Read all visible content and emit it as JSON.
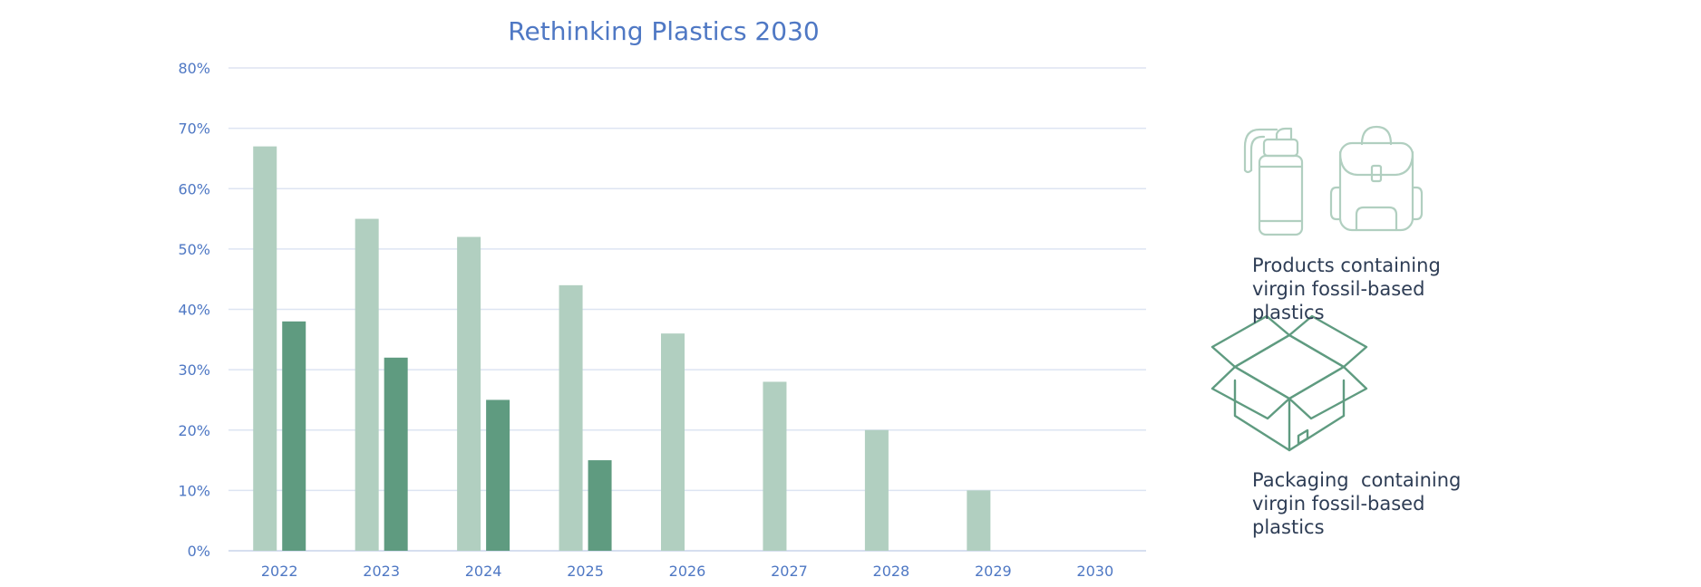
{
  "chart_data": {
    "type": "bar",
    "title": "Rethinking Plastics 2030",
    "xlabel": "",
    "ylabel": "",
    "ylim": [
      0,
      80
    ],
    "y_ticks": [
      "0%",
      "10%",
      "20%",
      "30%",
      "40%",
      "50%",
      "60%",
      "70%",
      "80%"
    ],
    "categories": [
      "2022",
      "2023",
      "2024",
      "2025",
      "2026",
      "2027",
      "2028",
      "2029",
      "2030"
    ],
    "grid": true,
    "series": [
      {
        "name": "Products containing virgin fossil-based plastics",
        "color": "#b1cfc0",
        "values": [
          67,
          55,
          52,
          44,
          36,
          28,
          20,
          10,
          0
        ]
      },
      {
        "name": "Packaging  containing virgin fossil-based plastics",
        "color": "#5f9b80",
        "values": [
          38,
          32,
          25,
          15,
          null,
          null,
          null,
          null,
          null
        ]
      }
    ]
  },
  "legend": {
    "products_icons": [
      "bottle-icon",
      "backpack-icon"
    ],
    "packaging_icons": [
      "open-box-icon"
    ],
    "products_label": "Products containing\nvirgin fossil-based\nplastics",
    "packaging_label": "Packaging  containing\nvirgin fossil-based\nplastics"
  }
}
